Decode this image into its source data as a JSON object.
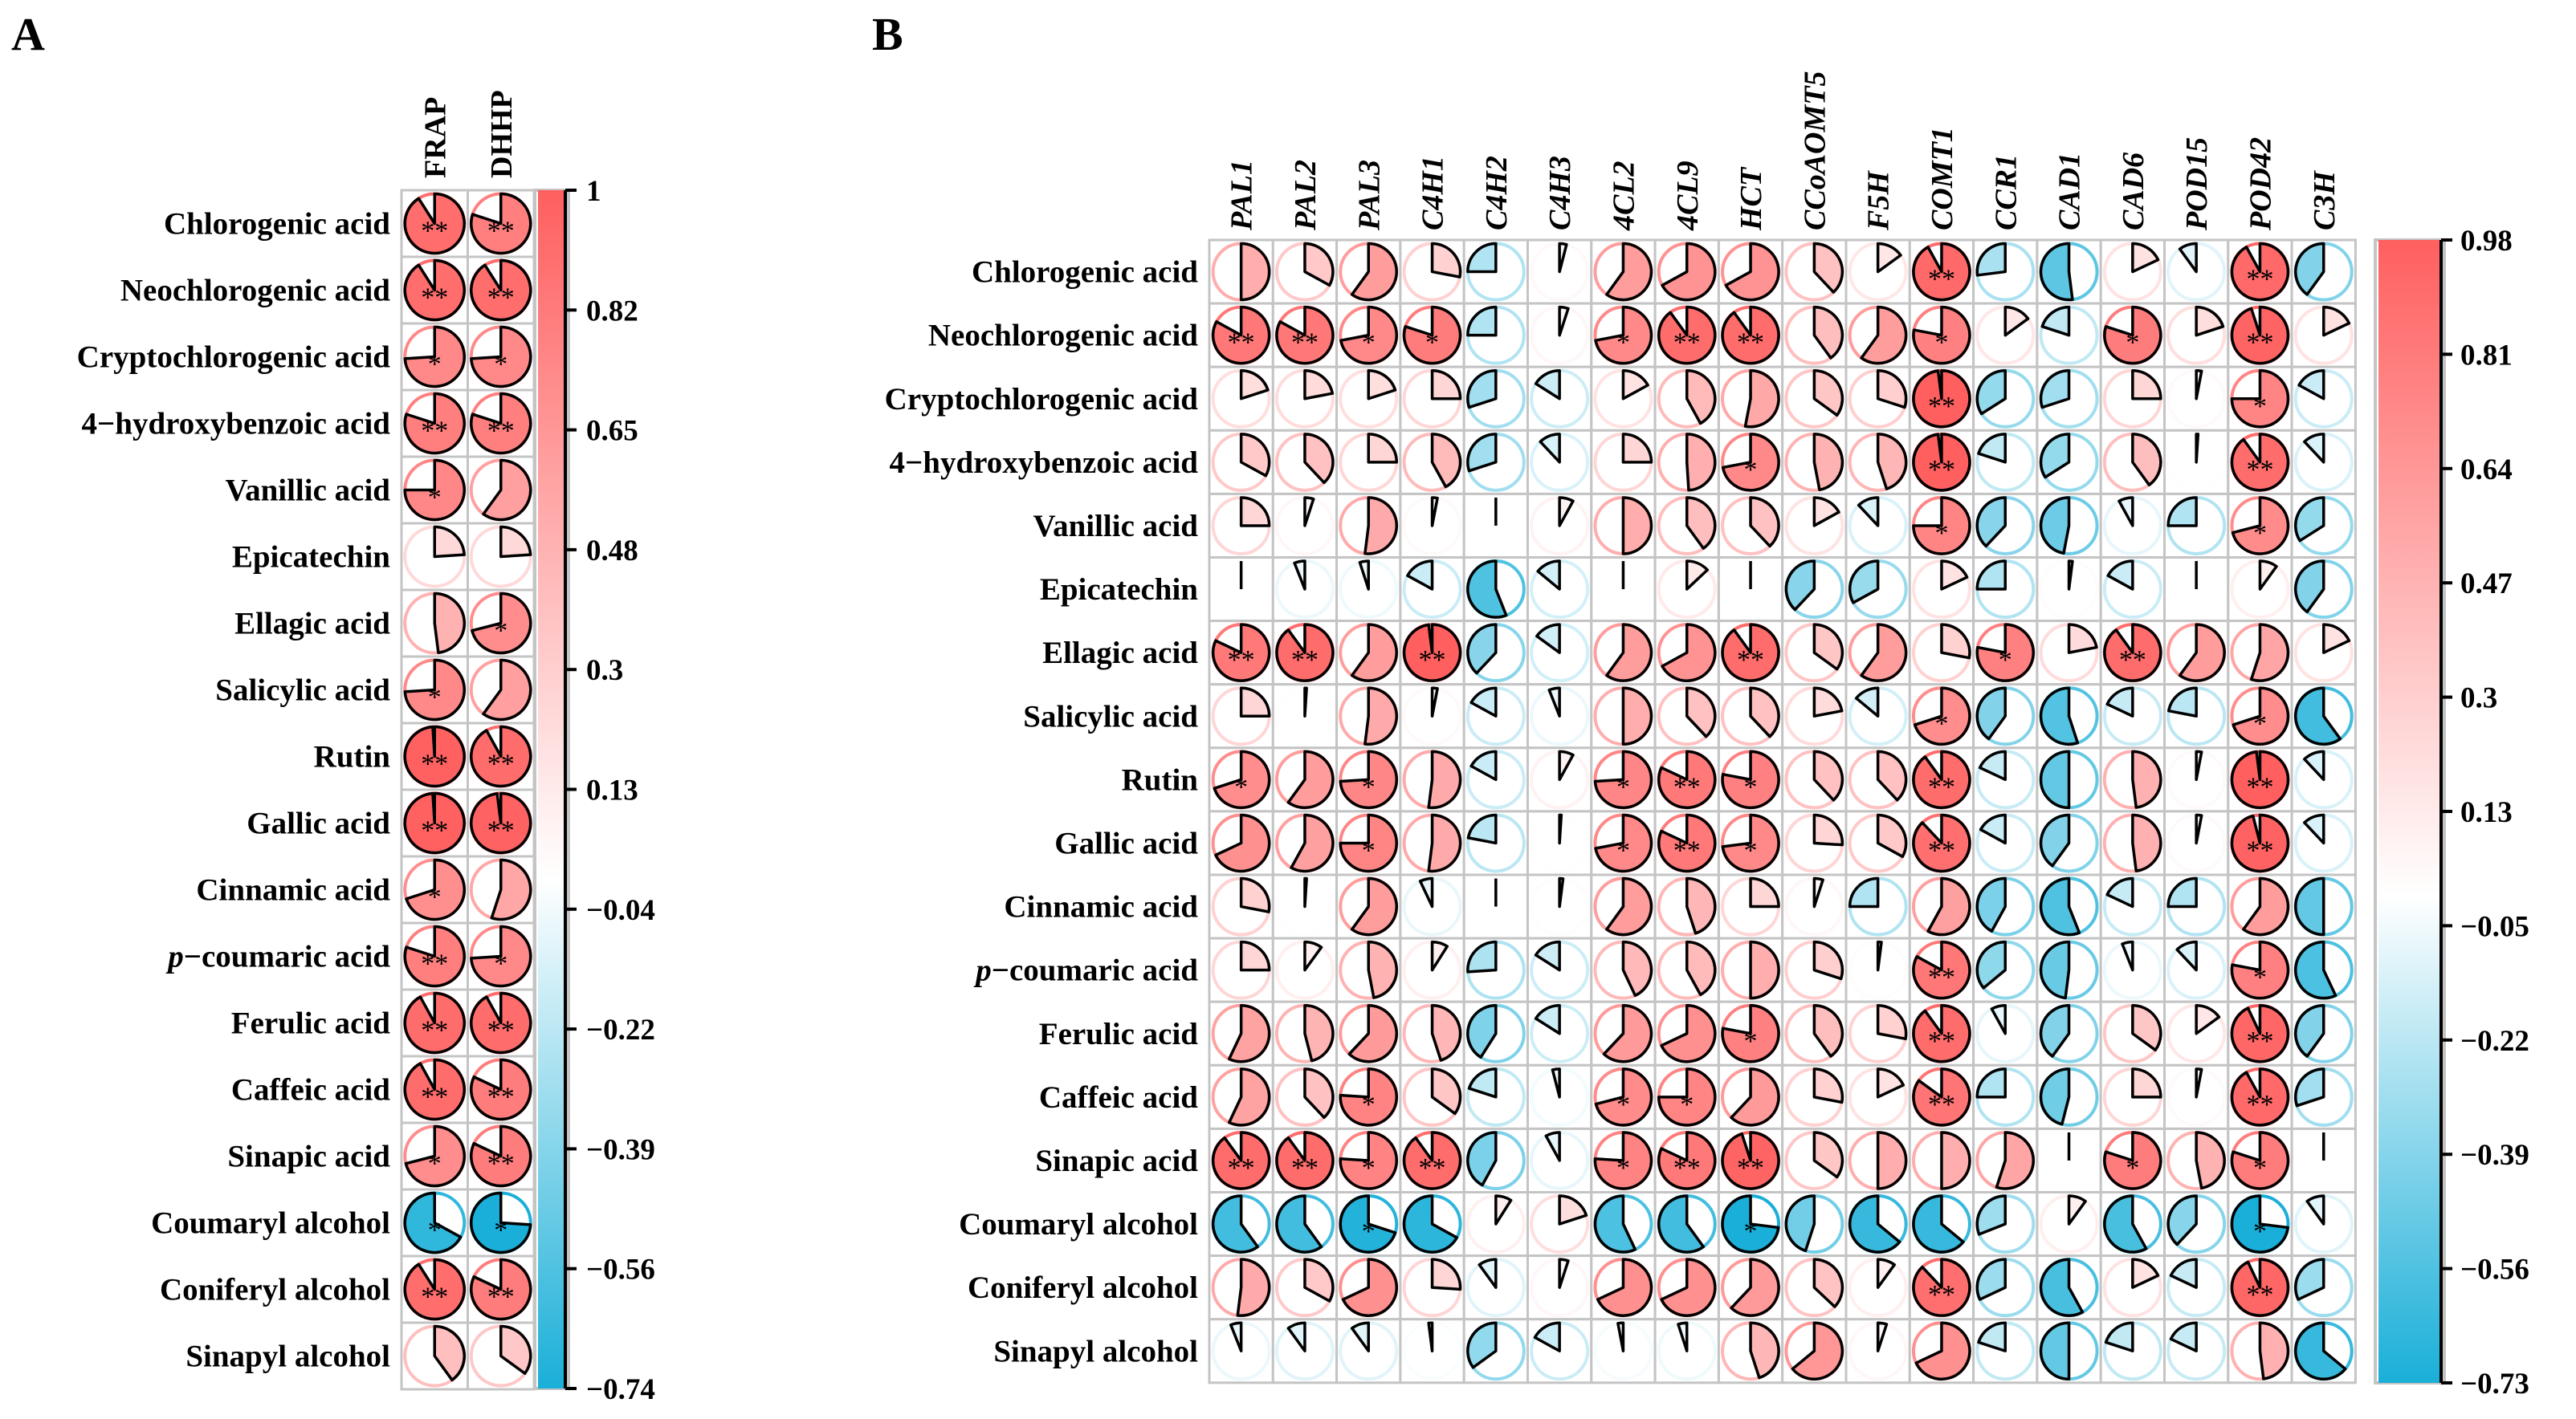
{
  "chart_data": [
    {
      "type": "heatmap",
      "panel_label": "A",
      "style": "pie correlation matrix",
      "columns": [
        "FRAP",
        "DHHP"
      ],
      "rows": [
        "Chlorogenic acid",
        "Neochlorogenic acid",
        "Cryptochlorogenic acid",
        "4−hydroxybenzoic acid",
        "Vanillic acid",
        "Epicatechin",
        "Ellagic acid",
        "Salicylic acid",
        "Rutin",
        "Gallic acid",
        "Cinnamic acid",
        "p−coumaric acid",
        "Ferulic acid",
        "Caffeic acid",
        "Sinapic acid",
        "Coumaryl alcohol",
        "Coniferyl alcohol",
        "Sinapyl alcohol"
      ],
      "values": [
        [
          0.91,
          0.8
        ],
        [
          0.91,
          0.91
        ],
        [
          0.74,
          0.74
        ],
        [
          0.8,
          0.8
        ],
        [
          0.75,
          0.6
        ],
        [
          0.24,
          0.24
        ],
        [
          0.48,
          0.71
        ],
        [
          0.74,
          0.6
        ],
        [
          0.99,
          0.92
        ],
        [
          0.99,
          0.98
        ],
        [
          0.7,
          0.55
        ],
        [
          0.8,
          0.74
        ],
        [
          0.92,
          0.92
        ],
        [
          0.92,
          0.82
        ],
        [
          0.71,
          0.82
        ],
        [
          -0.67,
          -0.74
        ],
        [
          0.91,
          0.82
        ],
        [
          0.4,
          0.35
        ]
      ],
      "significance": [
        [
          "**",
          "**"
        ],
        [
          "**",
          "**"
        ],
        [
          "*",
          "*"
        ],
        [
          "**",
          "**"
        ],
        [
          "*",
          ""
        ],
        [
          "",
          ""
        ],
        [
          "",
          "*"
        ],
        [
          "*",
          ""
        ],
        [
          "**",
          "**"
        ],
        [
          "**",
          "**"
        ],
        [
          "*",
          ""
        ],
        [
          "**",
          "*"
        ],
        [
          "**",
          "**"
        ],
        [
          "**",
          "**"
        ],
        [
          "*",
          "**"
        ],
        [
          "*",
          "*"
        ],
        [
          "**",
          "**"
        ],
        [
          "",
          ""
        ]
      ],
      "colorbar": {
        "max": 1,
        "min": -0.74,
        "ticks": [
          "1",
          "0.82",
          "0.65",
          "0.48",
          "0.3",
          "0.13",
          "−0.04",
          "−0.22",
          "−0.39",
          "−0.56",
          "−0.74"
        ]
      },
      "colors": {
        "positive": "#FF5F5F",
        "zero": "#FFFFFF",
        "negative": "#1AAFD8",
        "grid": "#C4C4C4"
      }
    },
    {
      "type": "heatmap",
      "panel_label": "B",
      "style": "pie correlation matrix",
      "columns": [
        "PAL1",
        "PAL2",
        "PAL3",
        "C4H1",
        "C4H2",
        "C4H3",
        "4CL2",
        "4CL9",
        "HCT",
        "CCoAOMT5",
        "F5H",
        "COMT1",
        "CCR1",
        "CAD1",
        "CAD6",
        "POD15",
        "POD42",
        "C3H"
      ],
      "rows": [
        "Chlorogenic acid",
        "Neochlorogenic acid",
        "Cryptochlorogenic acid",
        "4−hydroxybenzoic acid",
        "Vanillic acid",
        "Epicatechin",
        "Ellagic acid",
        "Salicylic acid",
        "Rutin",
        "Gallic acid",
        "Cinnamic acid",
        "p−coumaric acid",
        "Ferulic acid",
        "Caffeic acid",
        "Sinapic acid",
        "Coumaryl alcohol",
        "Coniferyl alcohol",
        "Sinapyl alcohol"
      ],
      "values": [
        [
          0.5,
          0.33,
          0.6,
          0.28,
          -0.25,
          0.04,
          0.6,
          0.67,
          0.67,
          0.38,
          0.15,
          0.92,
          -0.27,
          -0.52,
          0.18,
          -0.1,
          0.92,
          -0.4
        ],
        [
          0.83,
          0.83,
          0.72,
          0.8,
          -0.25,
          0.05,
          0.72,
          0.9,
          0.9,
          0.4,
          0.6,
          0.78,
          0.15,
          -0.2,
          0.8,
          0.2,
          0.95,
          0.18
        ],
        [
          0.2,
          0.22,
          0.2,
          0.25,
          -0.3,
          -0.16,
          0.17,
          0.42,
          0.53,
          0.35,
          0.3,
          0.98,
          -0.34,
          -0.3,
          0.25,
          0.03,
          0.75,
          -0.17
        ],
        [
          0.33,
          0.38,
          0.25,
          0.42,
          -0.3,
          -0.12,
          0.25,
          0.49,
          0.72,
          0.47,
          0.45,
          0.98,
          -0.2,
          -0.34,
          0.4,
          0.01,
          0.9,
          -0.12
        ],
        [
          0.25,
          0.05,
          0.52,
          0.03,
          0.0,
          0.08,
          0.5,
          0.4,
          0.38,
          0.17,
          -0.12,
          0.75,
          -0.38,
          -0.47,
          -0.08,
          -0.25,
          0.71,
          -0.34
        ],
        [
          0.0,
          -0.06,
          -0.05,
          -0.17,
          -0.56,
          -0.14,
          0.0,
          0.13,
          0.0,
          -0.38,
          -0.33,
          0.18,
          -0.25,
          0.02,
          -0.17,
          0.0,
          0.1,
          -0.4
        ],
        [
          0.82,
          0.9,
          0.6,
          0.98,
          -0.38,
          -0.15,
          0.6,
          0.67,
          0.9,
          0.35,
          0.6,
          0.28,
          0.78,
          0.22,
          0.9,
          0.6,
          0.55,
          0.18
        ],
        [
          0.25,
          0.01,
          0.52,
          0.03,
          -0.17,
          -0.06,
          0.5,
          0.38,
          0.38,
          0.22,
          -0.14,
          0.7,
          -0.4,
          -0.55,
          -0.18,
          -0.22,
          0.7,
          -0.6
        ],
        [
          0.7,
          0.6,
          0.74,
          0.52,
          -0.17,
          0.08,
          0.74,
          0.82,
          0.78,
          0.38,
          0.38,
          0.9,
          -0.18,
          -0.5,
          0.48,
          0.03,
          0.98,
          -0.12
        ],
        [
          0.68,
          0.58,
          0.75,
          0.52,
          -0.22,
          0.01,
          0.72,
          0.82,
          0.73,
          0.26,
          0.33,
          0.88,
          -0.17,
          -0.4,
          0.48,
          0.03,
          0.96,
          -0.12
        ],
        [
          0.28,
          0.01,
          0.6,
          -0.07,
          0.0,
          0.02,
          0.6,
          0.45,
          0.25,
          0.05,
          -0.25,
          0.58,
          -0.42,
          -0.56,
          -0.18,
          -0.25,
          0.6,
          -0.5
        ],
        [
          0.25,
          0.1,
          0.47,
          0.09,
          -0.26,
          -0.16,
          0.43,
          0.42,
          0.5,
          0.3,
          0.02,
          0.83,
          -0.36,
          -0.48,
          -0.06,
          -0.12,
          0.78,
          -0.57
        ],
        [
          0.57,
          0.46,
          0.62,
          0.45,
          -0.41,
          -0.16,
          0.62,
          0.68,
          0.78,
          0.4,
          0.28,
          0.9,
          -0.08,
          -0.4,
          0.35,
          0.15,
          0.93,
          -0.4
        ],
        [
          0.57,
          0.38,
          0.76,
          0.35,
          -0.2,
          -0.04,
          0.71,
          0.75,
          0.62,
          0.28,
          0.18,
          0.85,
          -0.25,
          -0.46,
          0.25,
          0.03,
          0.92,
          -0.3
        ],
        [
          0.9,
          0.9,
          0.76,
          0.9,
          -0.42,
          -0.08,
          0.76,
          0.82,
          0.95,
          0.35,
          0.5,
          0.5,
          0.55,
          0.0,
          0.8,
          0.47,
          0.8,
          0.0
        ],
        [
          -0.6,
          -0.6,
          -0.7,
          -0.67,
          0.09,
          0.2,
          -0.57,
          -0.6,
          -0.73,
          -0.45,
          -0.64,
          -0.64,
          -0.31,
          0.1,
          -0.58,
          -0.38,
          -0.73,
          -0.1
        ],
        [
          0.52,
          0.33,
          0.68,
          0.26,
          -0.1,
          0.05,
          0.68,
          0.68,
          0.62,
          0.37,
          0.1,
          0.88,
          -0.32,
          -0.58,
          0.18,
          -0.18,
          0.93,
          -0.32
        ],
        [
          -0.06,
          -0.1,
          -0.1,
          -0.02,
          -0.35,
          -0.17,
          -0.03,
          -0.05,
          0.45,
          0.64,
          0.05,
          0.68,
          -0.2,
          -0.5,
          -0.2,
          -0.18,
          0.48,
          -0.64
        ]
      ],
      "significance": [
        [
          "",
          "",
          "",
          "",
          "",
          "",
          "",
          "",
          "",
          "",
          "",
          "**",
          "",
          "",
          "",
          "",
          "**",
          ""
        ],
        [
          "**",
          "**",
          "*",
          "*",
          "",
          "",
          "*",
          "**",
          "**",
          "",
          "",
          "*",
          "",
          "",
          "*",
          "",
          "**",
          ""
        ],
        [
          "",
          "",
          "",
          "",
          "",
          "",
          "",
          "",
          "",
          "",
          "",
          "**",
          "",
          "",
          "",
          "",
          "*",
          ""
        ],
        [
          "",
          "",
          "",
          "",
          "",
          "",
          "",
          "",
          "*",
          "",
          "",
          "**",
          "",
          "",
          "",
          "",
          "**",
          ""
        ],
        [
          "",
          "",
          "",
          "",
          "",
          "",
          "",
          "",
          "",
          "",
          "",
          "*",
          "",
          "",
          "",
          "",
          "*",
          ""
        ],
        [
          "",
          "",
          "",
          "",
          "",
          "",
          "",
          "",
          "",
          "",
          "",
          "",
          "",
          "",
          "",
          "",
          "",
          ""
        ],
        [
          "**",
          "**",
          "",
          "**",
          "",
          "",
          "",
          "",
          "**",
          "",
          "",
          "",
          "*",
          "",
          "**",
          "",
          "",
          ""
        ],
        [
          "",
          "",
          "",
          "",
          "",
          "",
          "",
          "",
          "",
          "",
          "",
          "*",
          "",
          "",
          "",
          "",
          "*",
          ""
        ],
        [
          "*",
          "",
          "*",
          "",
          "",
          "",
          "*",
          "**",
          "*",
          "",
          "",
          "**",
          "",
          "",
          "",
          "",
          "**",
          ""
        ],
        [
          "",
          "",
          "*",
          "",
          "",
          "",
          "*",
          "**",
          "*",
          "",
          "",
          "**",
          "",
          "",
          "",
          "",
          "**",
          ""
        ],
        [
          "",
          "",
          "",
          "",
          "",
          "",
          "",
          "",
          "",
          "",
          "",
          "",
          "",
          "",
          "",
          "",
          "",
          ""
        ],
        [
          "",
          "",
          "",
          "",
          "",
          "",
          "",
          "",
          "",
          "",
          "",
          "**",
          "",
          "",
          "",
          "",
          "*",
          ""
        ],
        [
          "",
          "",
          "",
          "",
          "",
          "",
          "",
          "",
          "*",
          "",
          "",
          "**",
          "",
          "",
          "",
          "",
          "**",
          ""
        ],
        [
          "",
          "",
          "*",
          "",
          "",
          "",
          "*",
          "*",
          "",
          "",
          "",
          "**",
          "",
          "",
          "",
          "",
          "**",
          ""
        ],
        [
          "**",
          "**",
          "*",
          "**",
          "",
          "",
          "*",
          "**",
          "**",
          "",
          "",
          "",
          "",
          "",
          "*",
          "",
          "*",
          ""
        ],
        [
          "",
          "",
          "*",
          "",
          "",
          "",
          "",
          "",
          "*",
          "",
          "",
          "",
          "",
          "",
          "",
          "",
          "*",
          ""
        ],
        [
          "",
          "",
          "",
          "",
          "",
          "",
          "",
          "",
          "",
          "",
          "",
          "**",
          "",
          "",
          "",
          "",
          "**",
          ""
        ],
        [
          "",
          "",
          "",
          "",
          "",
          "",
          "",
          "",
          "",
          "",
          "",
          "",
          "",
          "",
          "",
          "",
          "",
          ""
        ]
      ],
      "colorbar": {
        "max": 0.98,
        "min": -0.73,
        "ticks": [
          "0.98",
          "0.81",
          "0.64",
          "0.47",
          "0.3",
          "0.13",
          "−0.05",
          "−0.22",
          "−0.39",
          "−0.56",
          "−0.73"
        ]
      },
      "colors": {
        "positive": "#FF5F5F",
        "zero": "#FFFFFF",
        "negative": "#1AAFD8",
        "grid": "#C4C4C4"
      }
    }
  ]
}
